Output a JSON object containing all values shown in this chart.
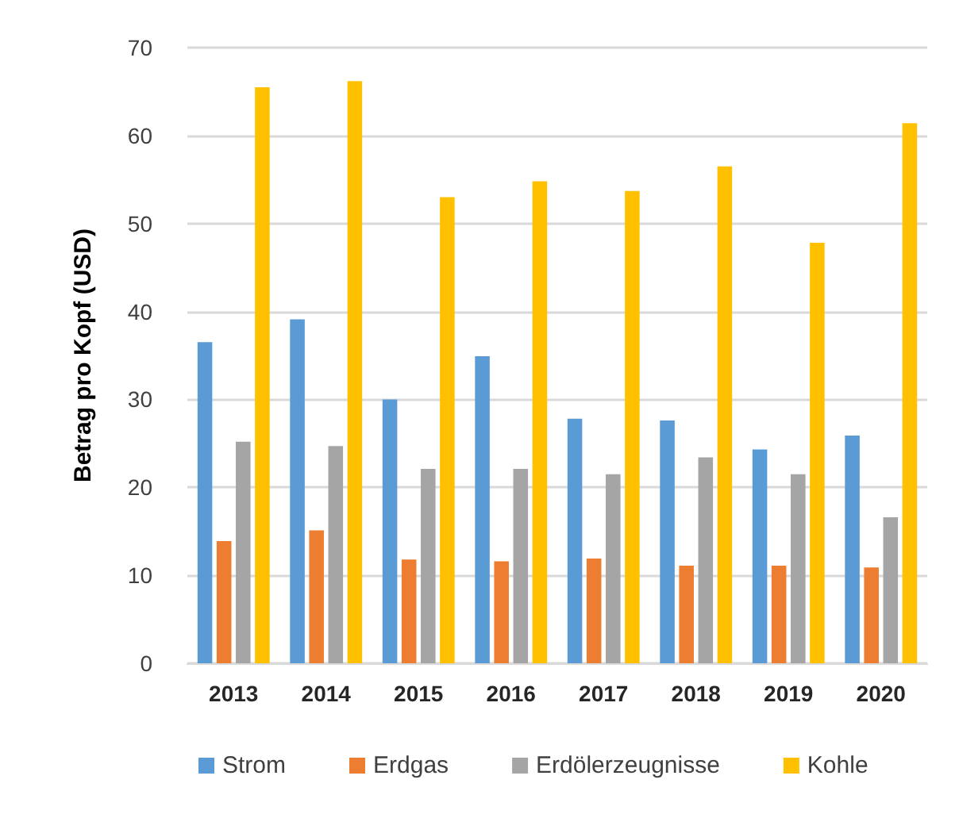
{
  "chart_data": {
    "type": "bar",
    "ylabel": "Betrag pro Kopf (USD)",
    "categories": [
      "2013",
      "2014",
      "2015",
      "2016",
      "2017",
      "2018",
      "2019",
      "2020"
    ],
    "series": [
      {
        "name": "Strom",
        "color": "#5b9bd5",
        "values": [
          36.5,
          39.1,
          30.0,
          34.9,
          27.8,
          27.6,
          24.3,
          25.9
        ]
      },
      {
        "name": "Erdgas",
        "color": "#ed7d31",
        "values": [
          13.9,
          15.1,
          11.8,
          11.6,
          11.9,
          11.1,
          11.1,
          10.9
        ]
      },
      {
        "name": "Erdölerzeugnisse",
        "color": "#a5a5a5",
        "values": [
          25.2,
          24.7,
          22.1,
          22.1,
          21.5,
          23.4,
          21.5,
          16.6
        ]
      },
      {
        "name": "Kohle",
        "color": "#ffc000",
        "values": [
          65.5,
          66.2,
          53.0,
          54.8,
          53.7,
          56.5,
          47.8,
          61.4
        ]
      }
    ],
    "ylim": [
      0,
      70
    ],
    "yticks": [
      0,
      10,
      20,
      30,
      40,
      50,
      60,
      70
    ],
    "grid": "y",
    "legend": "bottom"
  }
}
